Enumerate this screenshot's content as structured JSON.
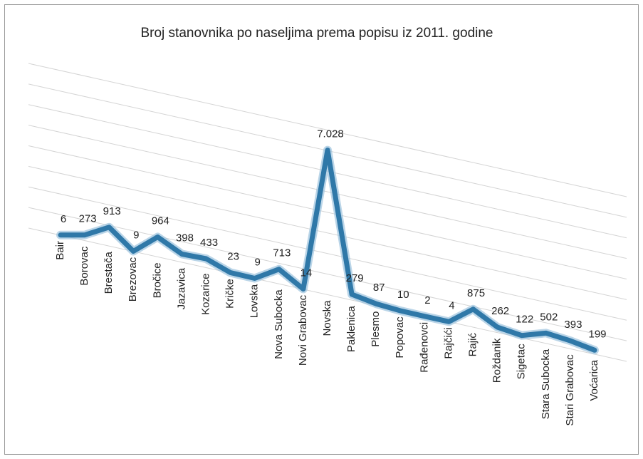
{
  "chart_data": {
    "type": "line",
    "title": "Broj stanovnika po naseljima prema popisu iz 2011. godine",
    "categories": [
      "Bair",
      "Borovac",
      "Brestača",
      "Brezovac",
      "Bročice",
      "Jazavica",
      "Kozarice",
      "Kričke",
      "Lovska",
      "Nova Subocka",
      "Novi Grabovac",
      "Novska",
      "Paklenica",
      "Plesmo",
      "Popovac",
      "Rađenovci",
      "Rajčići",
      "Rajić",
      "Roždanik",
      "Sigetac",
      "Stara Subocka",
      "Stari Grabovac",
      "Voćarica"
    ],
    "values": [
      6,
      273,
      913,
      9,
      964,
      398,
      433,
      23,
      9,
      713,
      14,
      7028,
      279,
      87,
      10,
      2,
      4,
      875,
      262,
      122,
      502,
      393,
      199
    ],
    "value_labels": [
      "6",
      "273",
      "913",
      "9",
      "964",
      "398",
      "433",
      "23",
      "9",
      "713",
      "14",
      "7.028",
      "279",
      "87",
      "10",
      "2",
      "4",
      "875",
      "262",
      "122",
      "502",
      "393",
      "199"
    ],
    "color": "#2f78a8",
    "ylim": [
      0,
      8000
    ],
    "yticks": [
      0,
      1000,
      2000,
      3000,
      4000,
      5000,
      6000,
      7000,
      8000
    ],
    "grid": true
  }
}
